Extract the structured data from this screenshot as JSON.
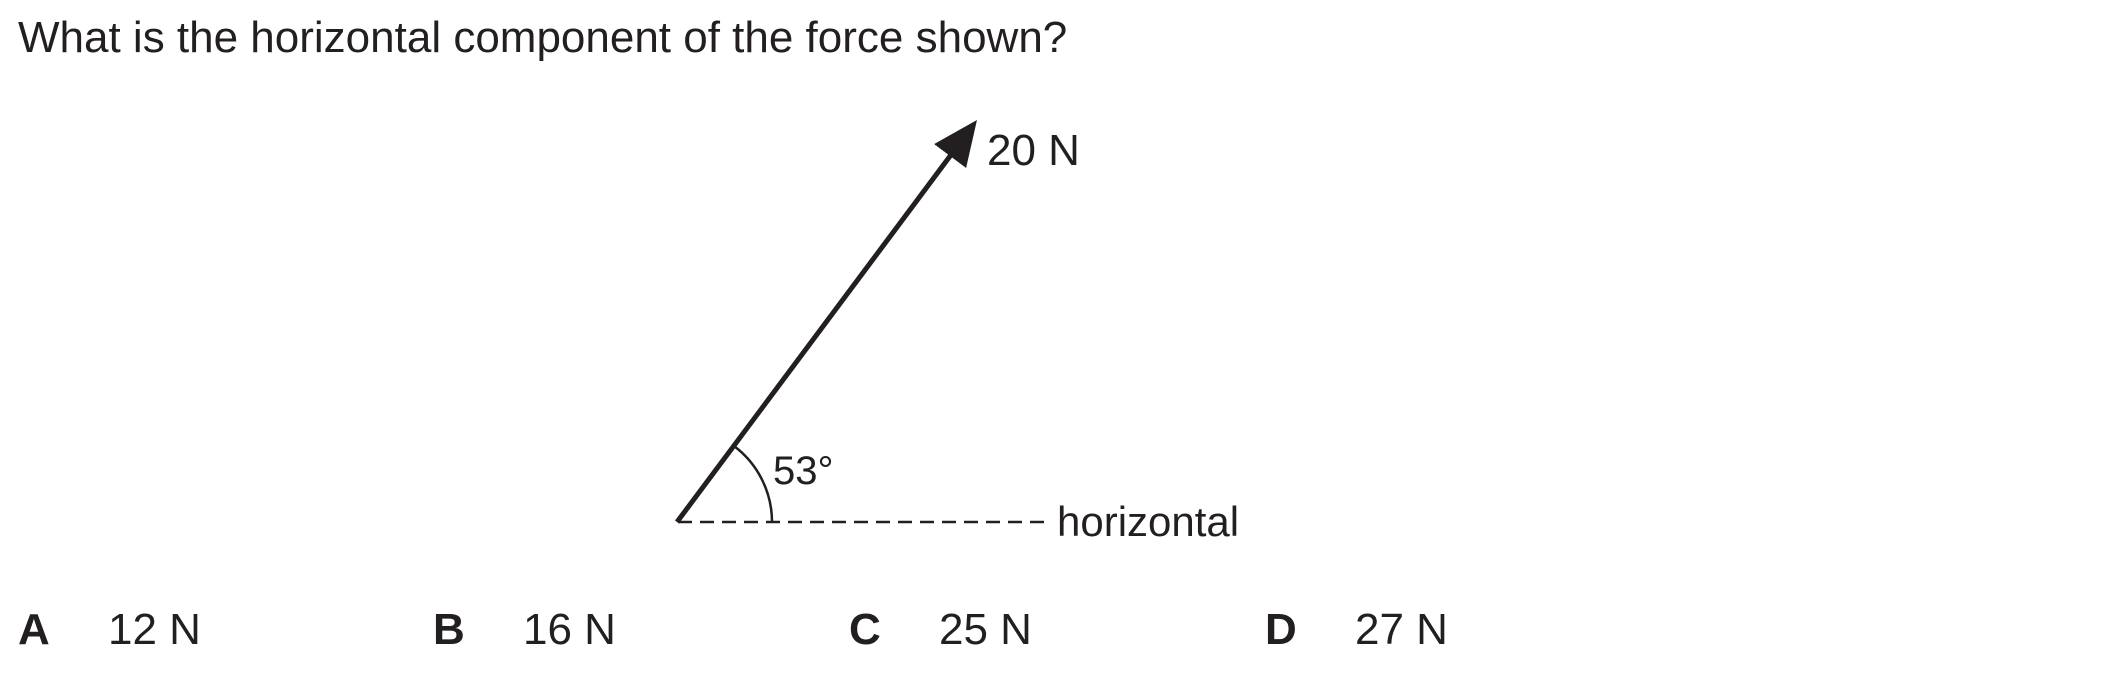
{
  "question": {
    "text": "What is the horizontal component of the force shown?"
  },
  "diagram": {
    "force_label": "20 N",
    "angle_label": "53°",
    "horizontal_label": "horizontal"
  },
  "options": [
    {
      "letter": "A",
      "value": "12 N"
    },
    {
      "letter": "B",
      "value": "16 N"
    },
    {
      "letter": "C",
      "value": "25 N"
    },
    {
      "letter": "D",
      "value": "27 N"
    }
  ]
}
